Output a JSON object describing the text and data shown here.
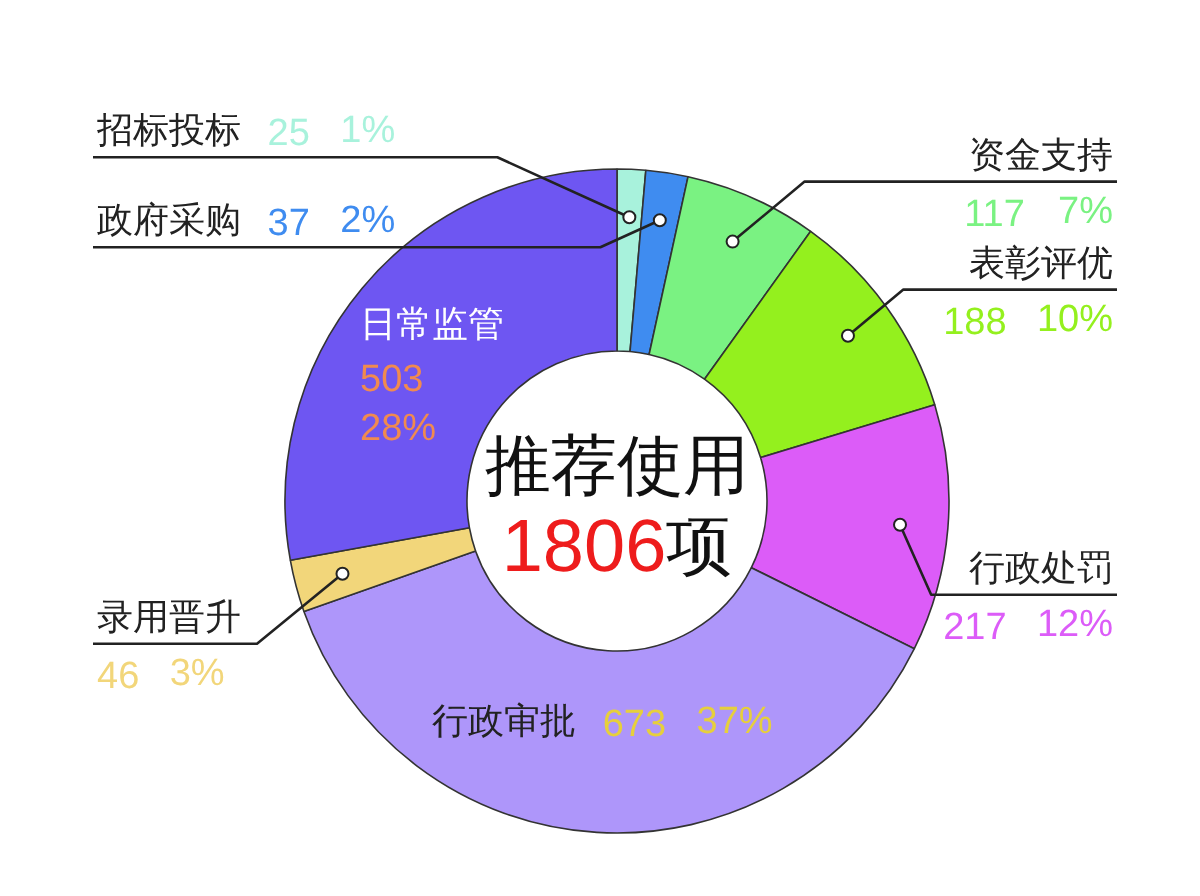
{
  "chart_data": {
    "type": "donut",
    "title": "推荐使用",
    "annotations": [
      "1806",
      "项"
    ],
    "categories": [
      "招标投标",
      "政府采购",
      "资金支持",
      "表彰评优",
      "行政处罚",
      "行政审批",
      "录用晋升",
      "日常监管"
    ],
    "values": [
      25,
      37,
      117,
      188,
      217,
      673,
      46,
      503
    ],
    "colors": [
      "#a8f2dc",
      "#3f8cf0",
      "#7af282",
      "#94f01e",
      "#dc5cf8",
      "#ae96fa",
      "#f2d67a",
      "#6e56f2"
    ],
    "value_labels": [
      "25 1%",
      "37 2%",
      "117 7%",
      "188 10%",
      "217 12%",
      "673 37%",
      "46 3%",
      "503 28%"
    ]
  }
}
